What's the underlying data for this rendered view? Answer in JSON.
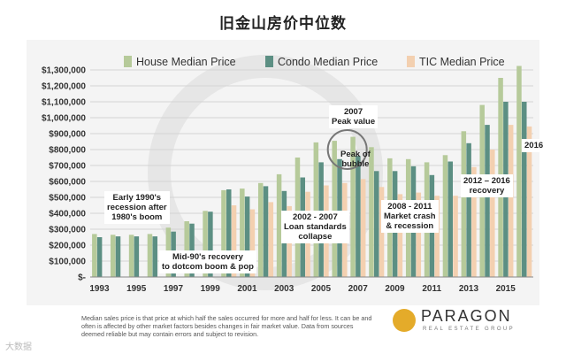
{
  "page_title": "旧金山房价中位数",
  "chart_data": {
    "type": "bar",
    "categories": [
      "1993",
      "1994",
      "1995",
      "1996",
      "1997",
      "1998",
      "1999",
      "2000",
      "2001",
      "2002",
      "2003",
      "2004",
      "2005",
      "2006",
      "2007",
      "2008",
      "2009",
      "2010",
      "2011",
      "2012",
      "2013",
      "2014",
      "2015",
      "2016"
    ],
    "x_tick_labels": [
      "1993",
      "1995",
      "1997",
      "1999",
      "2001",
      "2003",
      "2005",
      "2007",
      "2009",
      "2011",
      "2013",
      "2015"
    ],
    "y_tick_labels": [
      "$-",
      "$100,000",
      "$200,000",
      "$300,000",
      "$400,000",
      "$500,000",
      "$600,000",
      "$700,000",
      "$800,000",
      "$900,000",
      "$1,000,000",
      "$1,100,000",
      "$1,200,000",
      "$1,300,000"
    ],
    "ylim": [
      0,
      1400000
    ],
    "grid": true,
    "legend_position": "top",
    "series": [
      {
        "name": "House Median Price",
        "color": "#b6ca9a",
        "values": [
          270000,
          265000,
          265000,
          270000,
          310000,
          350000,
          415000,
          545000,
          555000,
          590000,
          645000,
          750000,
          845000,
          855000,
          880000,
          815000,
          745000,
          740000,
          720000,
          765000,
          915000,
          1080000,
          1250000,
          1325000
        ]
      },
      {
        "name": "Condo Median Price",
        "color": "#5c8f83",
        "values": [
          250000,
          255000,
          255000,
          255000,
          285000,
          335000,
          410000,
          550000,
          505000,
          570000,
          540000,
          625000,
          720000,
          740000,
          760000,
          665000,
          665000,
          695000,
          640000,
          725000,
          840000,
          955000,
          1100000,
          1100000
        ]
      },
      {
        "name": "TIC Median Price",
        "color": "#f3d0b0",
        "values": [
          0,
          0,
          0,
          0,
          0,
          0,
          0,
          450000,
          425000,
          470000,
          445000,
          535000,
          575000,
          590000,
          615000,
          565000,
          520000,
          530000,
          510000,
          510000,
          690000,
          800000,
          955000,
          945000
        ]
      }
    ],
    "annotations": [
      {
        "text": "Early 1990's\nrecession after\n1980's boom"
      },
      {
        "text": "Mid-90's recovery\nto dotcom boom & pop"
      },
      {
        "text": "2002 - 2007\nLoan standards\ncollapse"
      },
      {
        "text": "2007\nPeak value"
      },
      {
        "text": "Peak of\nbubble"
      },
      {
        "text": "2008 - 2011\nMarket crash\n& recession"
      },
      {
        "text": "2012 – 2016\nrecovery"
      },
      {
        "text": "2016"
      }
    ]
  },
  "footer": {
    "note": "Median sales price is that price at which half the sales occurred for more and half for less. It can be and often is affected by other market factors besides changes in fair market value. Data from sources deemed reliable but may contain errors and subject to revision.",
    "logo_name": "PARAGON",
    "logo_sub": "REAL ESTATE GROUP",
    "watermark": "大数据"
  }
}
